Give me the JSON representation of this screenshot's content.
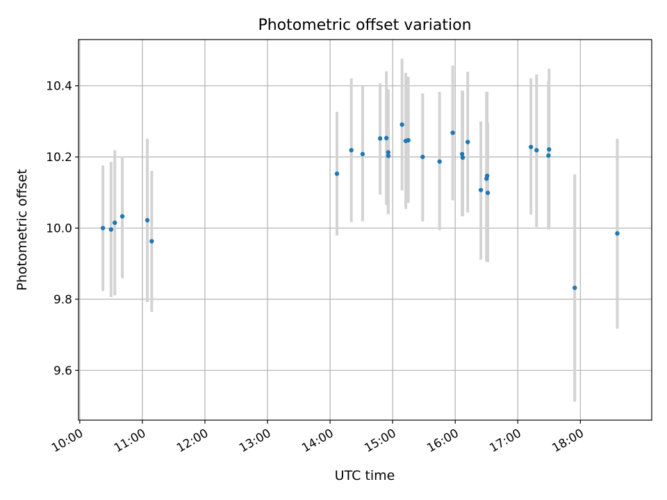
{
  "chart_data": {
    "type": "scatter",
    "title": "Photometric offset variation",
    "xlabel": "UTC time",
    "ylabel": "Photometric offset",
    "x_unit": "hours UTC",
    "xlim": [
      9.98,
      19.14
    ],
    "ylim": [
      9.46,
      10.53
    ],
    "x_ticks": [
      10,
      11,
      12,
      13,
      14,
      15,
      16,
      17,
      18
    ],
    "x_tick_labels": [
      "10:00",
      "11:00",
      "12:00",
      "13:00",
      "14:00",
      "15:00",
      "16:00",
      "17:00",
      "18:00"
    ],
    "y_ticks": [
      9.6,
      9.8,
      10.0,
      10.2,
      10.4
    ],
    "y_tick_labels": [
      "9.6",
      "9.8",
      "10.0",
      "10.2",
      "10.4"
    ],
    "grid": true,
    "marker_color": "#1f77b4",
    "errorbar_color": "#d3d3d3",
    "points": [
      {
        "x": 10.37,
        "y": 10.0,
        "err_low": 9.823,
        "err_high": 10.176
      },
      {
        "x": 10.5,
        "y": 9.996,
        "err_low": 9.806,
        "err_high": 10.186
      },
      {
        "x": 10.56,
        "y": 10.015,
        "err_low": 9.811,
        "err_high": 10.219
      },
      {
        "x": 10.68,
        "y": 10.033,
        "err_low": 9.859,
        "err_high": 10.201
      },
      {
        "x": 11.08,
        "y": 10.022,
        "err_low": 9.792,
        "err_high": 10.251
      },
      {
        "x": 11.15,
        "y": 9.963,
        "err_low": 9.764,
        "err_high": 10.161
      },
      {
        "x": 14.11,
        "y": 10.153,
        "err_low": 9.979,
        "err_high": 10.327
      },
      {
        "x": 14.34,
        "y": 10.219,
        "err_low": 10.017,
        "err_high": 10.421
      },
      {
        "x": 14.52,
        "y": 10.208,
        "err_low": 10.019,
        "err_high": 10.398
      },
      {
        "x": 14.8,
        "y": 10.252,
        "err_low": 10.094,
        "err_high": 10.407
      },
      {
        "x": 14.9,
        "y": 10.253,
        "err_low": 10.065,
        "err_high": 10.441
      },
      {
        "x": 14.93,
        "y": 10.203,
        "err_low": 10.039,
        "err_high": 10.39
      },
      {
        "x": 14.93,
        "y": 10.213,
        "err_low": 10.039,
        "err_high": 10.39
      },
      {
        "x": 15.15,
        "y": 10.291,
        "err_low": 10.106,
        "err_high": 10.476
      },
      {
        "x": 15.21,
        "y": 10.245,
        "err_low": 10.054,
        "err_high": 10.436
      },
      {
        "x": 15.25,
        "y": 10.247,
        "err_low": 10.071,
        "err_high": 10.425
      },
      {
        "x": 15.48,
        "y": 10.2,
        "err_low": 10.019,
        "err_high": 10.379
      },
      {
        "x": 15.75,
        "y": 10.187,
        "err_low": 9.994,
        "err_high": 10.383
      },
      {
        "x": 15.96,
        "y": 10.268,
        "err_low": 10.078,
        "err_high": 10.457
      },
      {
        "x": 16.11,
        "y": 10.208,
        "err_low": 10.033,
        "err_high": 10.386
      },
      {
        "x": 16.12,
        "y": 10.198,
        "err_low": 10.033,
        "err_high": 10.386
      },
      {
        "x": 16.2,
        "y": 10.242,
        "err_low": 10.044,
        "err_high": 10.44
      },
      {
        "x": 16.41,
        "y": 10.107,
        "err_low": 9.911,
        "err_high": 10.3
      },
      {
        "x": 16.5,
        "y": 10.139,
        "err_low": 9.906,
        "err_high": 10.383
      },
      {
        "x": 16.51,
        "y": 10.147,
        "err_low": 9.906,
        "err_high": 10.383
      },
      {
        "x": 16.52,
        "y": 10.099,
        "err_low": 9.904,
        "err_high": 10.297
      },
      {
        "x": 17.21,
        "y": 10.228,
        "err_low": 10.038,
        "err_high": 10.421
      },
      {
        "x": 17.3,
        "y": 10.219,
        "err_low": 10.003,
        "err_high": 10.432
      },
      {
        "x": 17.49,
        "y": 10.204,
        "err_low": 9.996,
        "err_high": 10.412
      },
      {
        "x": 17.5,
        "y": 10.221,
        "err_low": 9.996,
        "err_high": 10.448
      },
      {
        "x": 17.91,
        "y": 9.832,
        "err_low": 9.512,
        "err_high": 10.151
      },
      {
        "x": 18.59,
        "y": 9.985,
        "err_low": 9.717,
        "err_high": 10.251
      }
    ]
  }
}
